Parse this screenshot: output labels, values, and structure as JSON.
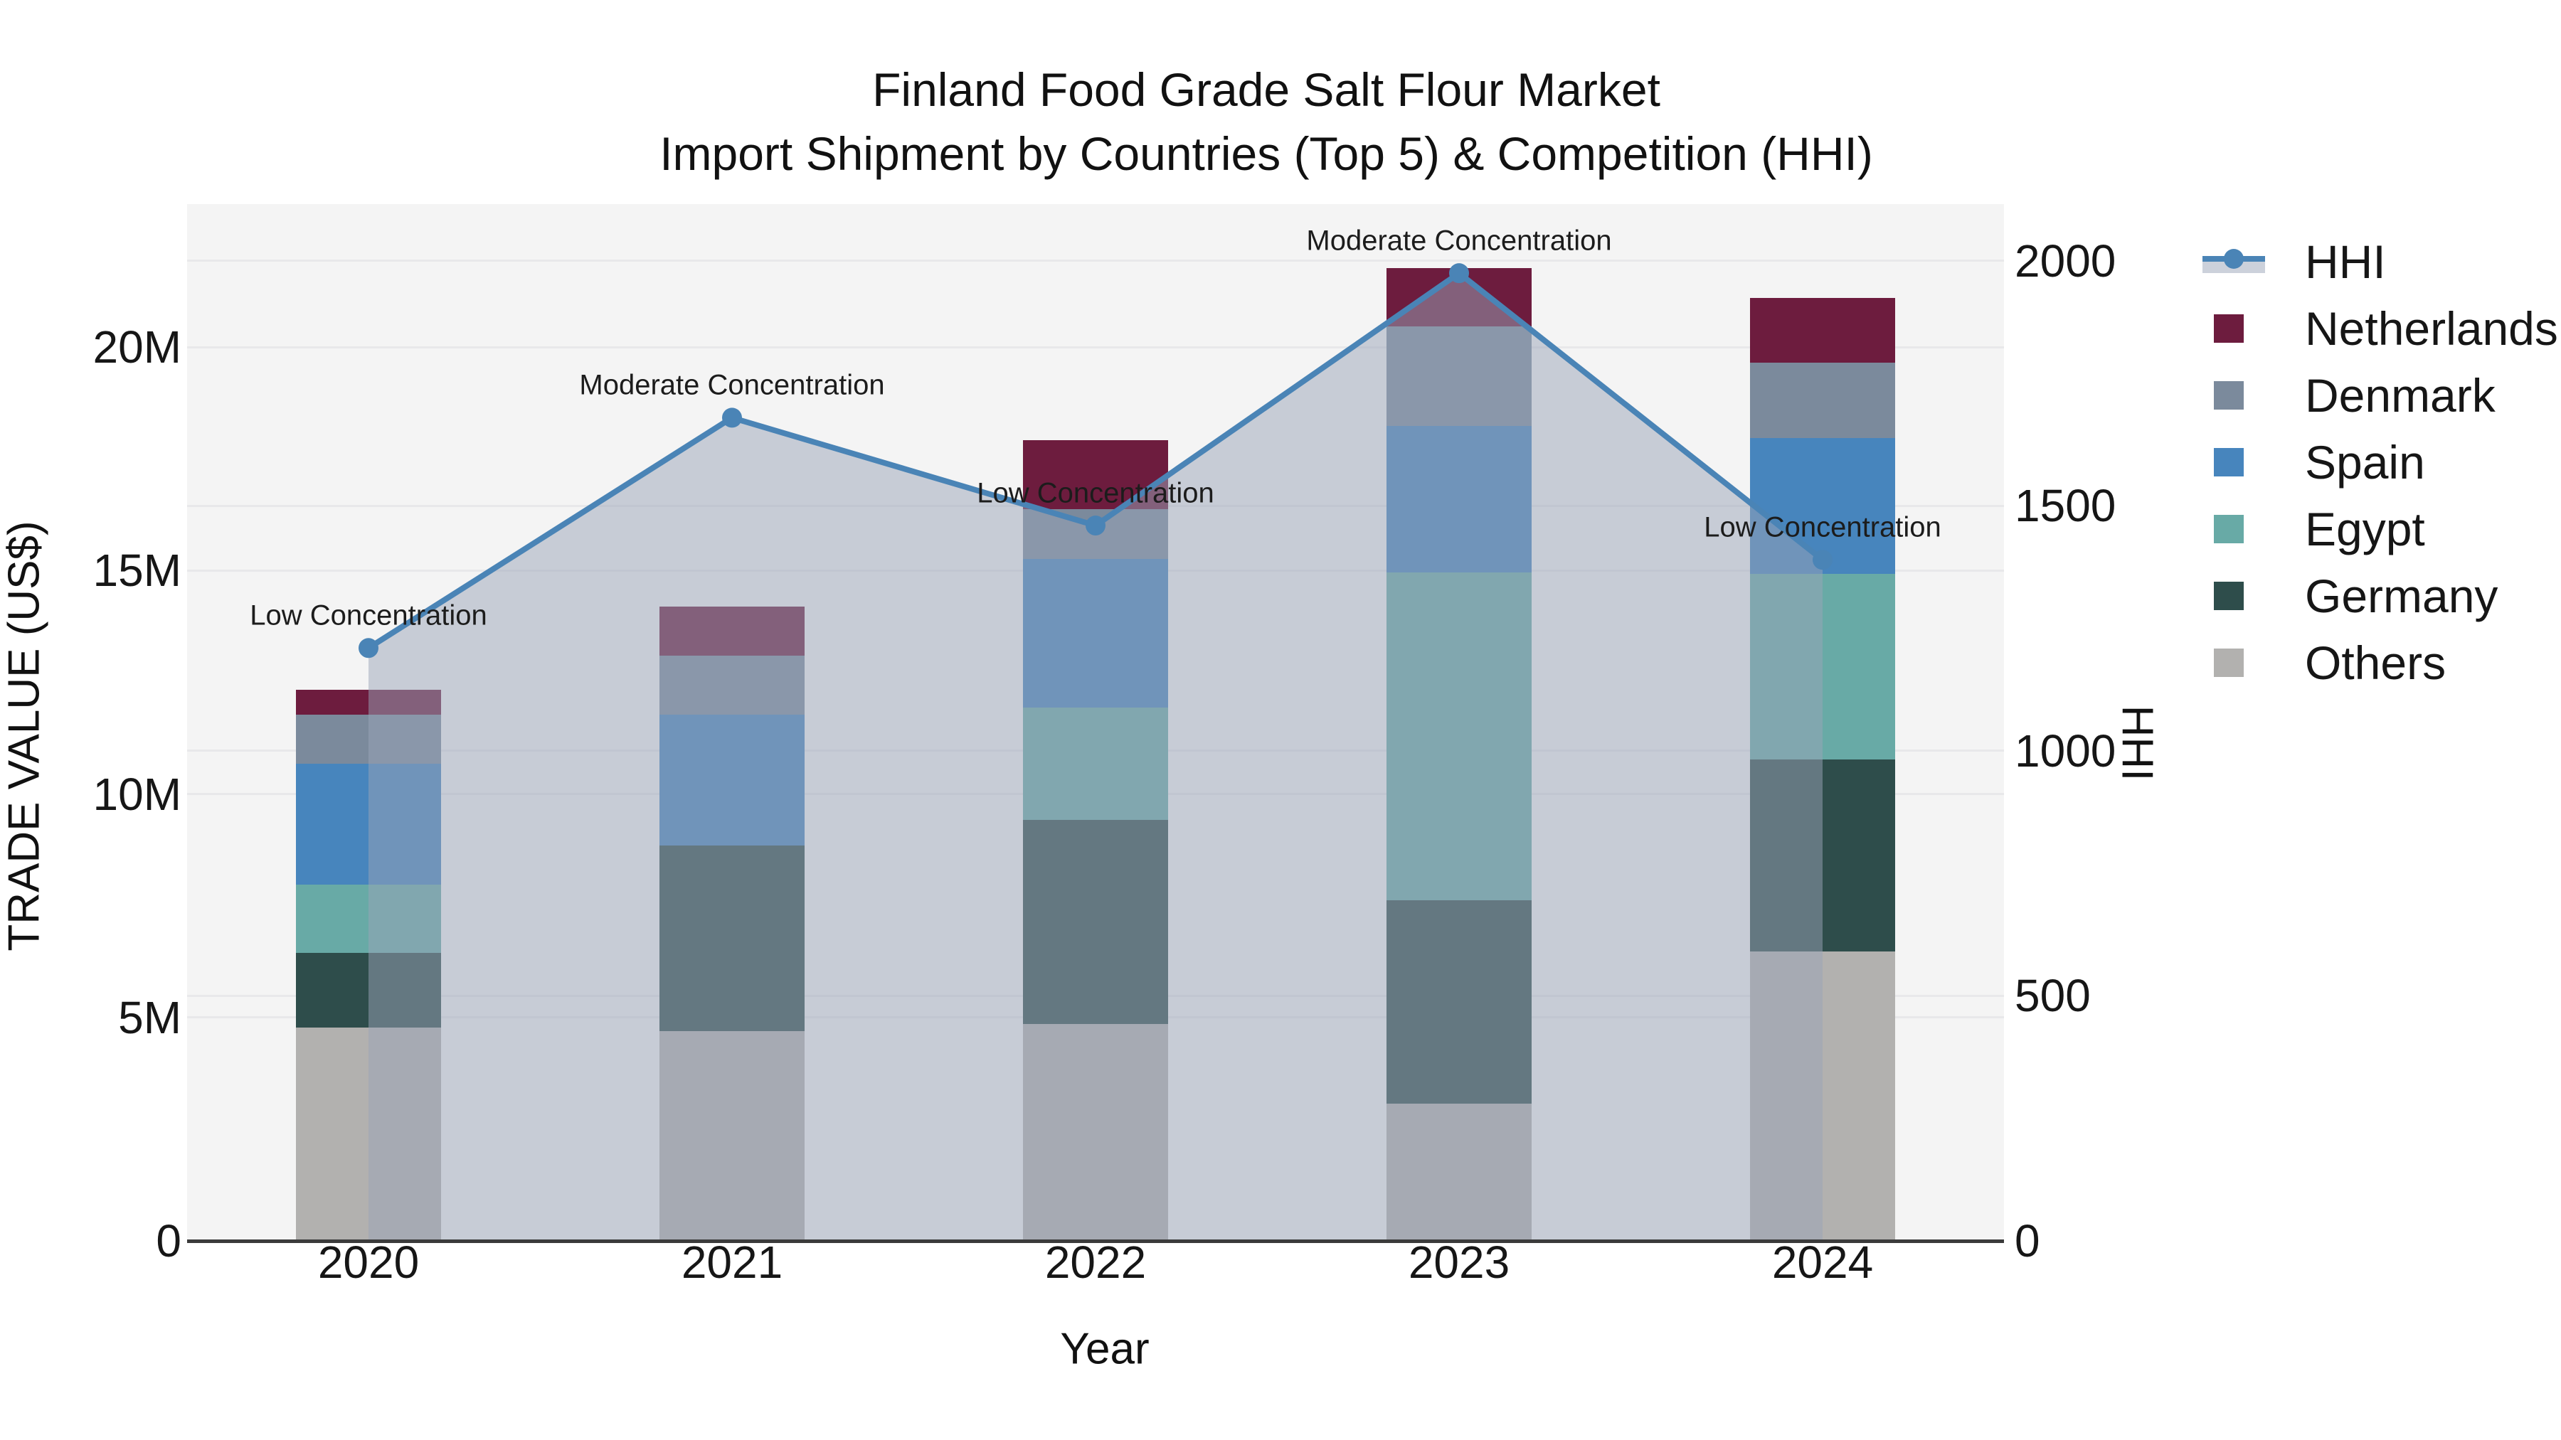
{
  "title": {
    "line1": "Finland Food Grade Salt Flour Market",
    "line2": "Import Shipment by Countries (Top 5) & Competition (HHI)"
  },
  "chart_data": {
    "type": "bar+line",
    "categories": [
      "2020",
      "2021",
      "2022",
      "2023",
      "2024"
    ],
    "values_unit": "million US$",
    "series": [
      {
        "name": "Netherlands",
        "color": "#6d1c3e",
        "values": [
          0.56,
          1.11,
          1.54,
          1.3,
          1.45
        ]
      },
      {
        "name": "Denmark",
        "color": "#7b8a9c",
        "values": [
          1.1,
          1.32,
          1.11,
          2.24,
          1.69
        ]
      },
      {
        "name": "Spain",
        "color": "#4785bd",
        "values": [
          2.7,
          2.93,
          3.33,
          3.28,
          3.04
        ]
      },
      {
        "name": "Egypt",
        "color": "#68aaa6",
        "values": [
          1.54,
          0.0,
          2.51,
          7.33,
          4.14
        ]
      },
      {
        "name": "Germany",
        "color": "#2e4d4b",
        "values": [
          1.67,
          4.15,
          4.57,
          4.55,
          4.3
        ]
      },
      {
        "name": "Others",
        "color": "#b2b1af",
        "values": [
          4.77,
          4.69,
          4.85,
          3.07,
          6.48
        ]
      }
    ],
    "stack_bottom_to_top": [
      "Others",
      "Germany",
      "Egypt",
      "Spain",
      "Denmark",
      "Netherlands"
    ],
    "totals": [
      12.34,
      14.2,
      17.91,
      21.77,
      21.1
    ],
    "hhi": {
      "name": "HHI",
      "values": [
        1210,
        1680,
        1460,
        1975,
        1390
      ],
      "line_color": "#4a84b6",
      "area_color": "#99a3b7",
      "area_alpha": 0.5
    },
    "annotations": [
      {
        "x": "2020",
        "text": "Low Concentration"
      },
      {
        "x": "2021",
        "text": "Moderate Concentration"
      },
      {
        "x": "2022",
        "text": "Low Concentration"
      },
      {
        "x": "2023",
        "text": "Moderate Concentration"
      },
      {
        "x": "2024",
        "text": "Low Concentration"
      }
    ],
    "axes": {
      "left": {
        "title": "TRADE VALUE (US$)",
        "ticks": [
          "0",
          "5M",
          "10M",
          "15M",
          "20M"
        ],
        "tick_values": [
          0,
          5,
          10,
          15,
          20
        ],
        "max": 23.2
      },
      "right": {
        "title": "HHI",
        "ticks": [
          "0",
          "500",
          "1000",
          "1500",
          "2000"
        ],
        "tick_values": [
          0,
          500,
          1000,
          1500,
          2000
        ],
        "max": 2116
      },
      "x": {
        "title": "Year",
        "ticks": [
          "2020",
          "2021",
          "2022",
          "2023",
          "2024"
        ]
      }
    },
    "legend": [
      {
        "label": "HHI",
        "type": "line"
      },
      {
        "label": "Netherlands",
        "type": "swatch",
        "color": "#6d1c3e"
      },
      {
        "label": "Denmark",
        "type": "swatch",
        "color": "#7b8a9c"
      },
      {
        "label": "Spain",
        "type": "swatch",
        "color": "#4785bd"
      },
      {
        "label": "Egypt",
        "type": "swatch",
        "color": "#68aaa6"
      },
      {
        "label": "Germany",
        "type": "swatch",
        "color": "#2e4d4b"
      },
      {
        "label": "Others",
        "type": "swatch",
        "color": "#b2b1af"
      }
    ],
    "grid": true,
    "legend_position": "right"
  },
  "colors": {
    "plot_bg": "#f4f4f4",
    "grid": "#e8e8ea",
    "axis_line": "#3b3b3b",
    "band_over_white": "#ccd1db"
  }
}
